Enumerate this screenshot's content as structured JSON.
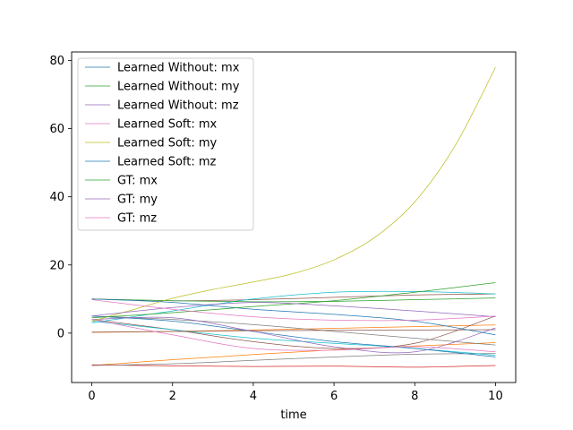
{
  "chart_data": {
    "type": "line",
    "title": "",
    "xlabel": "time",
    "ylabel": "",
    "xlim": [
      -0.5,
      10.5
    ],
    "ylim": [
      -14.5,
      82.5
    ],
    "xticks": [
      0,
      2,
      4,
      6,
      8,
      10
    ],
    "yticks": [
      0,
      20,
      40,
      60,
      80
    ],
    "grid": false,
    "legend_position": "top-left",
    "legend_series": [
      {
        "name": "Learned Without: mx",
        "color": "#1f77b4"
      },
      {
        "name": "Learned Without: my",
        "color": "#2ca02c"
      },
      {
        "name": "Learned Without: mz",
        "color": "#9467bd"
      },
      {
        "name": "Learned Soft: mx",
        "color": "#e377c2"
      },
      {
        "name": "Learned Soft: my",
        "color": "#bcbd22"
      },
      {
        "name": "Learned Soft: mz",
        "color": "#1f77b4"
      },
      {
        "name": "GT: mx",
        "color": "#2ca02c"
      },
      {
        "name": "GT: my",
        "color": "#9467bd"
      },
      {
        "name": "GT: mz",
        "color": "#e377c2"
      }
    ],
    "other_lines": [
      {
        "color": "#ff7f0e",
        "x": [
          0,
          2,
          4,
          6,
          8,
          10
        ],
        "y": [
          -9.5,
          -7.8,
          -6.3,
          -4.9,
          -3.8,
          -2.8
        ]
      },
      {
        "color": "#ff7f0e",
        "x": [
          0,
          2,
          4,
          6,
          8,
          10
        ],
        "y": [
          0.2,
          0.5,
          0.9,
          1.4,
          1.9,
          2.4
        ]
      },
      {
        "color": "#d62728",
        "x": [
          0,
          2,
          4,
          6,
          8,
          10
        ],
        "y": [
          -9.3,
          -9.6,
          -9.8,
          -9.7,
          -10.0,
          -9.5
        ]
      },
      {
        "color": "#8c564b",
        "x": [
          0,
          2,
          4,
          6,
          8,
          10
        ],
        "y": [
          10.0,
          9.5,
          9.8,
          10.5,
          11.2,
          11.5
        ]
      },
      {
        "color": "#8c564b",
        "x": [
          0,
          2,
          4,
          6,
          8,
          10
        ],
        "y": [
          4.0,
          1.0,
          -2.5,
          -4.5,
          -3.0,
          5.0
        ]
      },
      {
        "color": "#7f7f7f",
        "x": [
          0,
          2,
          4,
          6,
          8,
          10
        ],
        "y": [
          -9.5,
          -9.0,
          -8.0,
          -7.0,
          -6.2,
          -6.0
        ]
      },
      {
        "color": "#7f7f7f",
        "x": [
          0,
          2,
          4,
          6,
          8,
          10
        ],
        "y": [
          5.0,
          4.0,
          2.5,
          0.5,
          -1.5,
          -3.5
        ]
      },
      {
        "color": "#17becf",
        "x": [
          0,
          2,
          4,
          6,
          8,
          10
        ],
        "y": [
          3.0,
          6.5,
          10.0,
          12.0,
          12.2,
          11.5
        ]
      },
      {
        "color": "#17becf",
        "x": [
          0,
          2,
          4,
          6,
          8,
          10
        ],
        "y": [
          3.5,
          1.0,
          -1.5,
          -3.0,
          -4.5,
          -6.5
        ]
      },
      {
        "color": "#8c564b",
        "x": [
          0,
          2,
          4,
          6,
          8,
          10
        ],
        "y": [
          0.3,
          0.5,
          0.7,
          0.8,
          0.9,
          1.0
        ]
      }
    ],
    "series": [
      {
        "name": "Learned Without: mx",
        "color": "#1f77b4",
        "x": [
          0,
          2,
          4,
          6,
          8,
          10
        ],
        "y": [
          5.0,
          3.5,
          0.5,
          -2.5,
          -4.5,
          -7.0
        ]
      },
      {
        "color": "#2ca02c",
        "name": "Learned Without: my",
        "x": [
          0,
          2,
          4,
          6,
          8,
          10
        ],
        "y": [
          10.0,
          9.5,
          9.2,
          9.3,
          9.8,
          10.3
        ]
      },
      {
        "name": "Learned Without: mz",
        "color": "#9467bd",
        "x": [
          0,
          2,
          4,
          6,
          8,
          10
        ],
        "y": [
          4.0,
          4.5,
          0.5,
          -4.0,
          -5.5,
          1.5
        ]
      },
      {
        "name": "Learned Soft: mx",
        "color": "#e377c2",
        "x": [
          0,
          2,
          4,
          6,
          8,
          10
        ],
        "y": [
          4.0,
          -0.5,
          -4.5,
          -5.0,
          -4.0,
          -5.5
        ]
      },
      {
        "name": "Learned Soft: my",
        "color": "#bcbd22",
        "x": [
          0,
          1,
          2,
          3,
          4,
          5,
          6,
          7,
          8,
          9,
          10
        ],
        "y": [
          3.5,
          6.8,
          10.2,
          12.8,
          15.0,
          17.5,
          21.5,
          28.0,
          38.5,
          55.0,
          78.0
        ]
      },
      {
        "name": "Learned Soft: mz",
        "color": "#1f77b4",
        "x": [
          0,
          2,
          4,
          6,
          8,
          10
        ],
        "y": [
          10.0,
          9.0,
          7.0,
          5.5,
          3.5,
          -0.5
        ]
      },
      {
        "name": "GT: mx",
        "color": "#2ca02c",
        "x": [
          0,
          2,
          4,
          6,
          8,
          10
        ],
        "y": [
          4.5,
          6.0,
          7.8,
          9.5,
          12.0,
          14.8
        ]
      },
      {
        "name": "GT: my",
        "color": "#9467bd",
        "x": [
          0,
          2,
          4,
          6,
          8,
          10
        ],
        "y": [
          5.0,
          7.5,
          9.0,
          8.0,
          6.5,
          4.8
        ]
      },
      {
        "name": "GT: mz",
        "color": "#e377c2",
        "x": [
          0,
          2,
          4,
          6,
          8,
          10
        ],
        "y": [
          9.8,
          7.0,
          4.8,
          3.8,
          3.8,
          5.0
        ]
      }
    ]
  }
}
